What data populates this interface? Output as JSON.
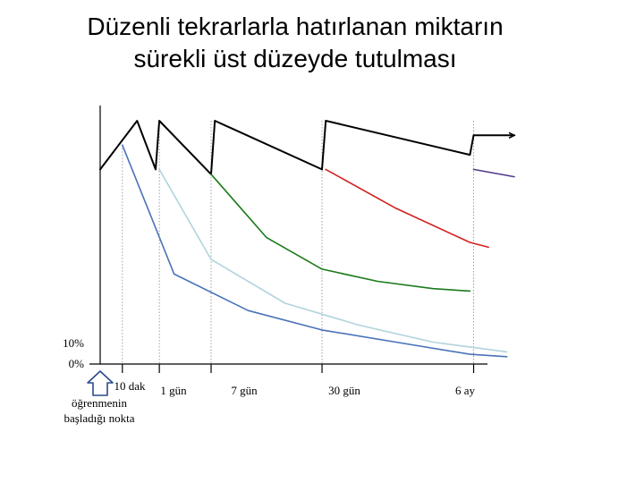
{
  "title": {
    "line1": "Düzenli tekrarlarla hatırlanan miktarın",
    "line2": "sürekli üst düzeyde tutulması"
  },
  "chart_data": {
    "type": "line",
    "title": "Düzenli tekrarlarla hatırlanan miktarın sürekli üst düzeyde tutulması",
    "y_ticks": [
      "10%",
      "0%"
    ],
    "x_ticks": [
      "10 dak",
      "1 gün",
      "7 gün",
      "30 gün",
      "6 ay"
    ],
    "start_label": [
      "öğrenmenin",
      "başladığı nokta"
    ],
    "grid": false,
    "series": [
      {
        "color": "#000000",
        "role": "retained-with-reviews",
        "points": [
          [
            0,
            80
          ],
          [
            10,
            100
          ],
          [
            15,
            80
          ],
          [
            16,
            100
          ],
          [
            30,
            78
          ],
          [
            31,
            100
          ],
          [
            60,
            80
          ],
          [
            61,
            100
          ],
          [
            100,
            86
          ],
          [
            101,
            94
          ],
          [
            112,
            94
          ]
        ]
      },
      {
        "color": "#4a72b8",
        "points": [
          [
            6,
            90
          ],
          [
            20,
            37
          ],
          [
            40,
            22
          ],
          [
            60,
            14
          ],
          [
            80,
            9
          ],
          [
            100,
            4
          ],
          [
            110,
            3
          ]
        ]
      },
      {
        "color": "#b0d4dc",
        "points": [
          [
            16,
            80
          ],
          [
            30,
            43
          ],
          [
            50,
            25
          ],
          [
            70,
            16
          ],
          [
            90,
            9
          ],
          [
            110,
            5
          ]
        ]
      },
      {
        "color": "#1a7a1a",
        "points": [
          [
            30,
            78
          ],
          [
            45,
            52
          ],
          [
            60,
            39
          ],
          [
            75,
            34
          ],
          [
            90,
            31
          ],
          [
            100,
            30
          ]
        ]
      },
      {
        "color": "#d42020",
        "points": [
          [
            61,
            80
          ],
          [
            80,
            64
          ],
          [
            100,
            50
          ],
          [
            105,
            48
          ]
        ]
      },
      {
        "color": "#503a8a",
        "points": [
          [
            101,
            80
          ],
          [
            112,
            77
          ]
        ]
      }
    ]
  },
  "colors": {
    "axis": "#000000",
    "guide": "#888888"
  }
}
